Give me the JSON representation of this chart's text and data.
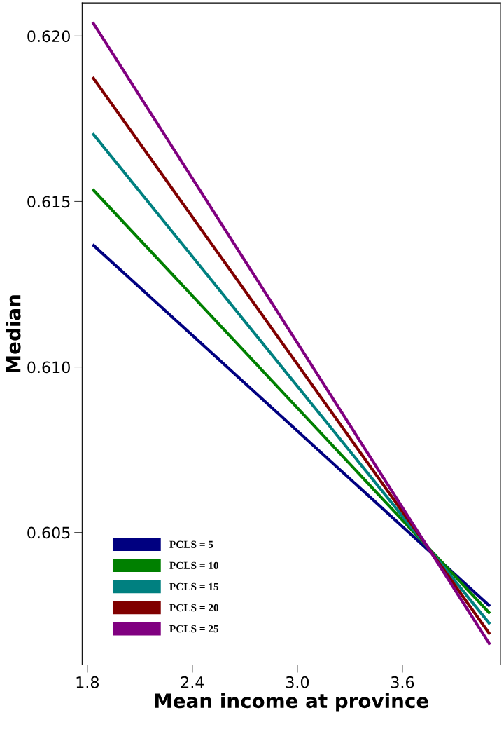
{
  "chart_data": {
    "type": "line",
    "xlabel": "Mean income at province",
    "ylabel": "Median",
    "x": [
      1.83,
      4.1
    ],
    "series": [
      {
        "name": "PCLS = 5",
        "color": "#000080",
        "values": [
          0.6137,
          0.60277
        ]
      },
      {
        "name": "PCLS = 10",
        "color": "#008000",
        "values": [
          0.61537,
          0.60255
        ]
      },
      {
        "name": "PCLS = 15",
        "color": "#008080",
        "values": [
          0.61706,
          0.60223
        ]
      },
      {
        "name": "PCLS = 20",
        "color": "#800000",
        "values": [
          0.61876,
          0.60192
        ]
      },
      {
        "name": "PCLS = 25",
        "color": "#800080",
        "values": [
          0.62042,
          0.60161
        ]
      }
    ],
    "xlim": [
      1.77,
      4.16
    ],
    "xticks": [
      {
        "value": 1.8,
        "label": "1.8"
      },
      {
        "value": 2.4,
        "label": "2.4"
      },
      {
        "value": 3.0,
        "label": "3.0"
      },
      {
        "value": 3.6,
        "label": "3.6"
      }
    ],
    "ylim": [
      0.601,
      0.621
    ],
    "yticks": [
      {
        "value": 0.605,
        "label": "0.605"
      },
      {
        "value": 0.61,
        "label": "0.610"
      },
      {
        "value": 0.615,
        "label": "0.615"
      },
      {
        "value": 0.62,
        "label": "0.620"
      }
    ],
    "grid": false,
    "legend": "bottom left",
    "marker": "none",
    "line_style": "solid"
  }
}
